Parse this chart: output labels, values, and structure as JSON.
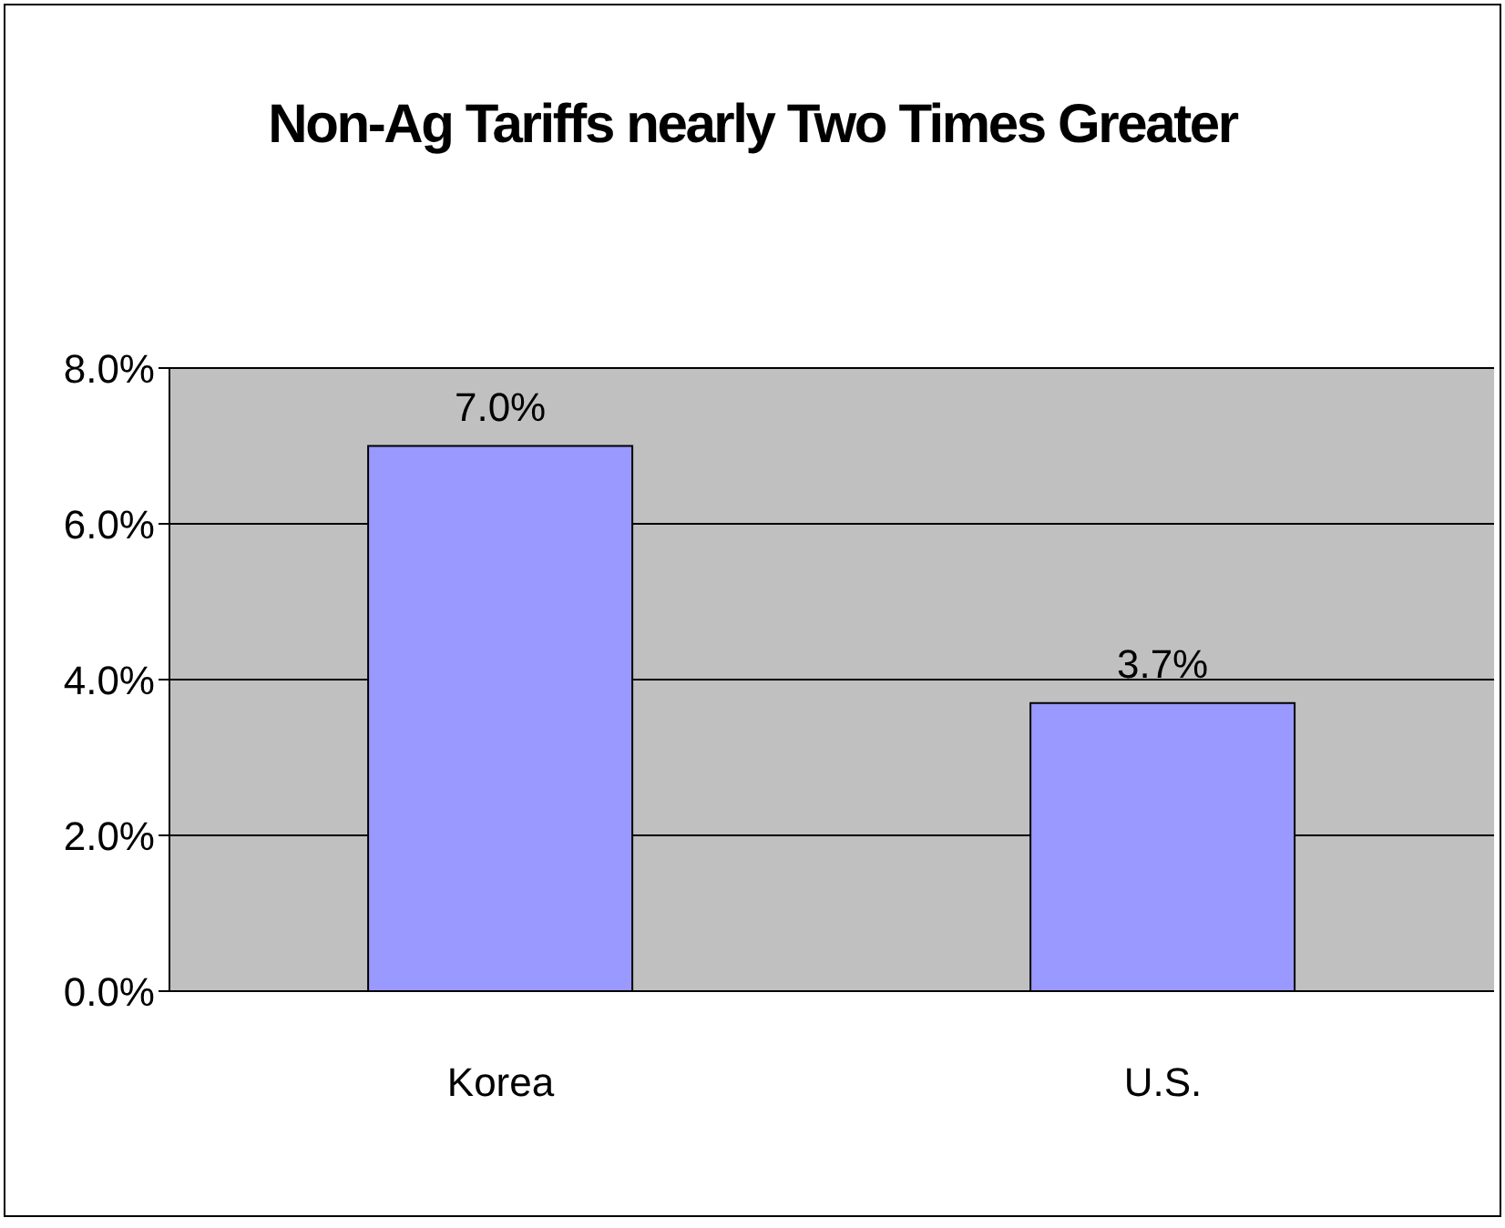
{
  "chart_data": {
    "type": "bar",
    "title": "Non-Ag Tariffs nearly Two Times Greater",
    "categories": [
      "Korea",
      "U.S."
    ],
    "values": [
      7.0,
      3.7
    ],
    "value_labels": [
      "7.0%",
      "3.7%"
    ],
    "color": "#9999ff",
    "ylim": [
      0,
      8
    ],
    "yticks": [
      {
        "value": 0,
        "label": "0.0%"
      },
      {
        "value": 2,
        "label": "2.0%"
      },
      {
        "value": 4,
        "label": "4.0%"
      },
      {
        "value": 6,
        "label": "6.0%"
      },
      {
        "value": 8,
        "label": "8.0%"
      }
    ],
    "grid": "y",
    "legend": false
  }
}
